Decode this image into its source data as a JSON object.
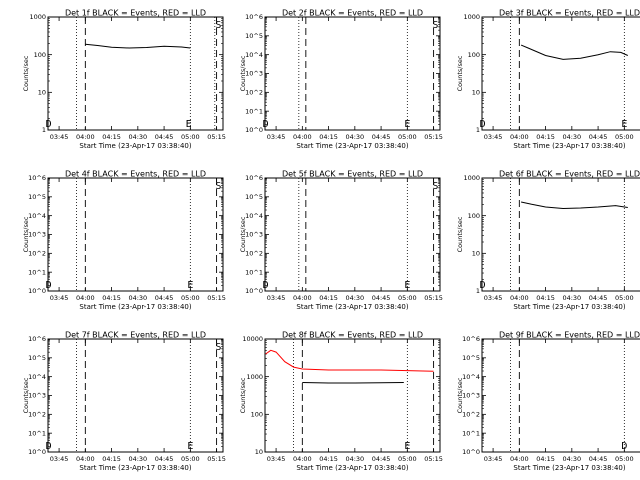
{
  "colors": {
    "events": "#000000",
    "lld": "#ff0000",
    "background": "#ffffff"
  },
  "chart_data": [
    {
      "type": "line",
      "yscale": "log",
      "title": "Det 1f BLACK = Events, RED = LLD",
      "xlabel": "Start Time (23-Apr-17 03:38:40)",
      "ylabel": "Counts/sec",
      "xlim": [
        "03:38:40",
        "05:18:40"
      ],
      "ylim": [
        1,
        1000
      ],
      "xticks": [
        "03:45",
        "04:00",
        "04:15",
        "04:30",
        "04:45",
        "05:00",
        "05:15"
      ],
      "yticks": [
        "1",
        "10",
        "100",
        "1000"
      ],
      "markers": [
        {
          "label": "D",
          "time": "03:39"
        },
        {
          "label": "S",
          "time": "05:16"
        },
        {
          "label": "E",
          "time": "04:59"
        }
      ],
      "dotted_lines": [
        "03:55",
        "05:00",
        "05:14"
      ],
      "dashed_lines": [
        "04:00",
        "05:15"
      ],
      "series": [
        {
          "name": "Events",
          "color": "#000000",
          "points": [
            [
              "04:00",
              190
            ],
            [
              "04:07",
              175
            ],
            [
              "04:15",
              158
            ],
            [
              "04:25",
              150
            ],
            [
              "04:35",
              155
            ],
            [
              "04:45",
              168
            ],
            [
              "04:55",
              160
            ],
            [
              "05:00",
              150
            ]
          ]
        }
      ]
    },
    {
      "type": "line",
      "yscale": "log",
      "title": "Det 2f BLACK = Events, RED = LLD",
      "xlabel": "Start Time (23-Apr-17 03:38:40)",
      "ylabel": "Counts/sec",
      "xlim": [
        "03:38:40",
        "05:18:40"
      ],
      "ylim": [
        1,
        1000000
      ],
      "xticks": [
        "03:45",
        "04:00",
        "04:15",
        "04:30",
        "04:45",
        "05:00",
        "05:15"
      ],
      "yticks": [
        "10^0",
        "10^1",
        "10^2",
        "10^3",
        "10^4",
        "10^5",
        "10^6"
      ],
      "markers": [
        {
          "label": "D",
          "time": "03:39"
        },
        {
          "label": "E",
          "time": "05:00"
        },
        {
          "label": "S",
          "time": "05:16"
        }
      ],
      "dotted_lines": [
        "03:58",
        "05:00"
      ],
      "dashed_lines": [
        "04:02",
        "05:15"
      ],
      "series": []
    },
    {
      "type": "line",
      "yscale": "log",
      "title": "Det 3f BLACK = Events, RED = LLD",
      "xlabel": "Start Time (23-Apr-17 03:38:40)",
      "ylabel": "Counts/sec",
      "xlim": [
        "03:38:40",
        "05:18:40"
      ],
      "ylim": [
        1,
        1000
      ],
      "xticks": [
        "03:45",
        "04:00",
        "04:15",
        "04:30",
        "04:45",
        "05:00",
        "05:15"
      ],
      "yticks": [
        "1",
        "10",
        "100",
        "1000"
      ],
      "markers": [
        {
          "label": "D",
          "time": "03:39"
        },
        {
          "label": "E",
          "time": "05:00"
        },
        {
          "label": "S",
          "time": "05:16"
        }
      ],
      "dotted_lines": [
        "03:55",
        "05:00"
      ],
      "dashed_lines": [
        "04:00",
        "05:15"
      ],
      "series": [
        {
          "name": "Events",
          "color": "#000000",
          "points": [
            [
              "04:01",
              180
            ],
            [
              "04:05",
              150
            ],
            [
              "04:15",
              95
            ],
            [
              "04:25",
              75
            ],
            [
              "04:35",
              80
            ],
            [
              "04:45",
              100
            ],
            [
              "04:52",
              120
            ],
            [
              "04:58",
              115
            ],
            [
              "05:02",
              95
            ]
          ]
        }
      ]
    },
    {
      "type": "line",
      "yscale": "log",
      "title": "Det 4f BLACK = Events, RED = LLD",
      "xlabel": "Start Time (23-Apr-17 03:38:40)",
      "ylabel": "Counts/sec",
      "xlim": [
        "03:38:40",
        "05:18:40"
      ],
      "ylim": [
        1,
        1000000
      ],
      "xticks": [
        "03:45",
        "04:00",
        "04:15",
        "04:30",
        "04:45",
        "05:00",
        "05:15"
      ],
      "yticks": [
        "10^0",
        "10^1",
        "10^2",
        "10^3",
        "10^4",
        "10^5",
        "10^6"
      ],
      "markers": [
        {
          "label": "D",
          "time": "03:39"
        },
        {
          "label": "E",
          "time": "05:00"
        },
        {
          "label": "S",
          "time": "05:16"
        }
      ],
      "dotted_lines": [
        "03:55",
        "05:00"
      ],
      "dashed_lines": [
        "04:00",
        "05:15"
      ],
      "series": []
    },
    {
      "type": "line",
      "yscale": "log",
      "title": "Det 5f BLACK = Events, RED = LLD",
      "xlabel": "Start Time (23-Apr-17 03:38:40)",
      "ylabel": "Counts/sec",
      "xlim": [
        "03:38:40",
        "05:18:40"
      ],
      "ylim": [
        1,
        1000000
      ],
      "xticks": [
        "03:45",
        "04:00",
        "04:15",
        "04:30",
        "04:45",
        "05:00",
        "05:15"
      ],
      "yticks": [
        "10^0",
        "10^1",
        "10^2",
        "10^3",
        "10^4",
        "10^5",
        "10^6"
      ],
      "markers": [
        {
          "label": "D",
          "time": "03:39"
        },
        {
          "label": "E",
          "time": "05:00"
        },
        {
          "label": "S",
          "time": "05:16"
        }
      ],
      "dotted_lines": [
        "03:58",
        "05:00"
      ],
      "dashed_lines": [
        "04:02",
        "05:15"
      ],
      "series": []
    },
    {
      "type": "line",
      "yscale": "log",
      "title": "Det 6f BLACK = Events, RED = LLD",
      "xlabel": "Start Time (23-Apr-17 03:38:40)",
      "ylabel": "Counts/sec",
      "xlim": [
        "03:38:40",
        "05:18:40"
      ],
      "ylim": [
        1,
        1000
      ],
      "xticks": [
        "03:45",
        "04:00",
        "04:15",
        "04:30",
        "04:45",
        "05:00",
        "05:15"
      ],
      "yticks": [
        "1",
        "10",
        "100",
        "1000"
      ],
      "markers": [
        {
          "label": "D",
          "time": "03:39"
        },
        {
          "label": "S",
          "time": "05:16"
        }
      ],
      "dotted_lines": [
        "03:55",
        "05:00"
      ],
      "dashed_lines": [
        "04:00",
        "05:15"
      ],
      "series": [
        {
          "name": "Events",
          "color": "#000000",
          "points": [
            [
              "04:01",
              230
            ],
            [
              "04:07",
              200
            ],
            [
              "04:15",
              170
            ],
            [
              "04:25",
              155
            ],
            [
              "04:35",
              160
            ],
            [
              "04:45",
              170
            ],
            [
              "04:55",
              185
            ],
            [
              "05:02",
              165
            ]
          ]
        }
      ]
    },
    {
      "type": "line",
      "yscale": "log",
      "title": "Det 7f BLACK = Events, RED = LLD",
      "xlabel": "Start Time (23-Apr-17 03:38:40)",
      "ylabel": "Counts/sec",
      "xlim": [
        "03:38:40",
        "05:18:40"
      ],
      "ylim": [
        1,
        1000000
      ],
      "xticks": [
        "03:45",
        "04:00",
        "04:15",
        "04:30",
        "04:45",
        "05:00",
        "05:15"
      ],
      "yticks": [
        "10^0",
        "10^1",
        "10^2",
        "10^3",
        "10^4",
        "10^5",
        "10^6"
      ],
      "markers": [
        {
          "label": "D",
          "time": "03:39"
        },
        {
          "label": "E",
          "time": "05:00"
        },
        {
          "label": "S",
          "time": "05:16"
        }
      ],
      "dotted_lines": [
        "03:55",
        "05:00"
      ],
      "dashed_lines": [
        "04:00",
        "05:15"
      ],
      "series": []
    },
    {
      "type": "line",
      "yscale": "log",
      "title": "Det 8f BLACK = Events, RED = LLD",
      "xlabel": "Start Time (23-Apr-17 03:38:40)",
      "ylabel": "Counts/sec",
      "xlim": [
        "03:38:40",
        "05:18:40"
      ],
      "ylim": [
        10,
        10000
      ],
      "xticks": [
        "03:45",
        "04:00",
        "04:15",
        "04:30",
        "04:45",
        "05:00",
        "05:15"
      ],
      "yticks": [
        "10",
        "100",
        "1000",
        "10000"
      ],
      "markers": [
        {
          "label": "E",
          "time": "05:00"
        }
      ],
      "dotted_lines": [
        "03:55",
        "05:00"
      ],
      "dashed_lines": [
        "04:00",
        "05:15"
      ],
      "series": [
        {
          "name": "LLD",
          "color": "#ff0000",
          "points": [
            [
              "03:39",
              4000
            ],
            [
              "03:42",
              5000
            ],
            [
              "03:45",
              4500
            ],
            [
              "03:50",
              2500
            ],
            [
              "03:55",
              1800
            ],
            [
              "04:00",
              1600
            ],
            [
              "04:15",
              1500
            ],
            [
              "04:30",
              1500
            ],
            [
              "04:45",
              1500
            ],
            [
              "05:00",
              1450
            ],
            [
              "05:15",
              1400
            ]
          ]
        },
        {
          "name": "Events",
          "color": "#000000",
          "points": [
            [
              "04:00",
              700
            ],
            [
              "04:15",
              680
            ],
            [
              "04:30",
              680
            ],
            [
              "04:45",
              690
            ],
            [
              "04:58",
              700
            ]
          ]
        }
      ]
    },
    {
      "type": "line",
      "yscale": "log",
      "title": "Det 9f BLACK = Events, RED = LLD",
      "xlabel": "Start Time (23-Apr-17 03:38:40)",
      "ylabel": "Counts/sec",
      "xlim": [
        "03:38:40",
        "05:18:40"
      ],
      "ylim": [
        1,
        1000000
      ],
      "xticks": [
        "03:45",
        "04:00",
        "04:15",
        "04:30",
        "04:45",
        "05:00",
        "05:15"
      ],
      "yticks": [
        "10^0",
        "10^1",
        "10^2",
        "10^3",
        "10^4",
        "10^5",
        "10^6"
      ],
      "markers": [
        {
          "label": "D",
          "time": "05:00"
        },
        {
          "label": "S",
          "time": "05:16"
        }
      ],
      "dotted_lines": [
        "03:55",
        "05:00"
      ],
      "dashed_lines": [
        "04:00",
        "05:15"
      ],
      "series": []
    }
  ]
}
